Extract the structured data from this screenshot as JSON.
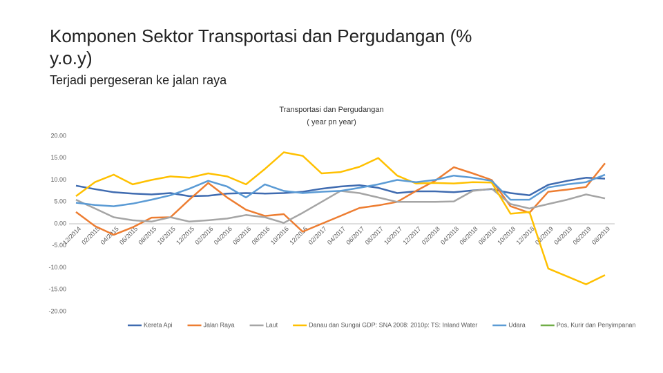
{
  "slide": {
    "title": "Komponen Sektor Transportasi dan Pergudangan (% y.o.y)",
    "subtitle": "Terjadi pergeseran ke jalan raya"
  },
  "chart_data": {
    "type": "line",
    "title": "Transportasi dan Pergudangan",
    "subtitle": "( year pn year)",
    "categories": [
      "12/2014",
      "02/2015",
      "04/2015",
      "06/2015",
      "08/2015",
      "10/2015",
      "12/2015",
      "02/2016",
      "04/2016",
      "06/2016",
      "08/2016",
      "10/2016",
      "12/2016",
      "02/2017",
      "04/2017",
      "06/2017",
      "08/2017",
      "10/2017",
      "12/2017",
      "02/2018",
      "04/2018",
      "06/2018",
      "08/2018",
      "10/2018",
      "12/2018",
      "02/2019",
      "04/2019",
      "06/2019",
      "08/2019"
    ],
    "series": [
      {
        "name": "Kereta Api",
        "color": "#3f6bb0",
        "values": [
          8.7,
          7.9,
          7.2,
          6.9,
          6.7,
          7.0,
          6.3,
          6.4,
          6.9,
          7.0,
          6.9,
          7.0,
          7.3,
          8.0,
          8.5,
          8.8,
          8.2,
          7.0,
          7.4,
          7.4,
          7.2,
          7.6,
          7.9,
          7.0,
          6.5,
          8.9,
          9.8,
          10.5,
          10.3
        ]
      },
      {
        "name": "Jalan Raya",
        "color": "#ed7d31",
        "values": [
          2.7,
          -0.5,
          -2.5,
          -0.8,
          1.4,
          1.5,
          5.5,
          9.3,
          6.0,
          3.2,
          1.8,
          2.2,
          -1.8,
          0.0,
          1.8,
          3.6,
          4.2,
          5.0,
          7.5,
          9.8,
          12.9,
          11.5,
          10.0,
          4.0,
          2.5,
          7.3,
          7.8,
          8.4,
          13.8
        ]
      },
      {
        "name": "Laut",
        "color": "#a5a5a5",
        "values": [
          5.5,
          3.5,
          1.5,
          0.8,
          0.5,
          1.5,
          0.5,
          0.8,
          1.2,
          2.0,
          1.5,
          0.2,
          2.5,
          5.0,
          7.5,
          7.0,
          6.0,
          5.0,
          5.0,
          5.0,
          5.1,
          7.5,
          8.0,
          4.5,
          3.5,
          4.5,
          5.5,
          6.7,
          5.8
        ]
      },
      {
        "name": "Danau dan Sungai GDP: SNA 2008: 2010p: TS: Inland Water",
        "color": "#ffc000",
        "values": [
          6.3,
          9.5,
          11.2,
          9.0,
          10.0,
          10.8,
          10.5,
          11.5,
          10.8,
          9.0,
          12.5,
          16.3,
          15.5,
          11.5,
          11.8,
          13.0,
          15.0,
          11.0,
          9.2,
          9.3,
          9.2,
          9.5,
          9.4,
          2.3,
          2.7,
          -10.2,
          -12.0,
          -13.8,
          -11.7
        ]
      },
      {
        "name": "Udara",
        "color": "#5b9bd5",
        "values": [
          4.8,
          4.3,
          4.0,
          4.6,
          5.5,
          6.5,
          8.0,
          9.8,
          8.5,
          6.0,
          9.0,
          7.5,
          7.0,
          7.3,
          7.5,
          8.2,
          9.0,
          10.0,
          9.5,
          10.0,
          11.0,
          10.5,
          9.8,
          5.5,
          5.5,
          8.3,
          9.0,
          9.5,
          11.2
        ]
      },
      {
        "name": "Pos, Kurir dan Penyimpanan",
        "color": "#70ad47",
        "values": [
          null,
          null,
          null,
          null,
          null,
          null,
          null,
          null,
          null,
          null,
          null,
          null,
          null,
          null,
          null,
          null,
          null,
          null,
          null,
          null,
          null,
          null,
          null,
          null,
          null,
          null,
          null,
          null,
          null
        ]
      }
    ],
    "ylim": [
      -20,
      20
    ],
    "yticks": [
      {
        "value": 20,
        "label": "20.00"
      },
      {
        "value": 15,
        "label": "15.00"
      },
      {
        "value": 10,
        "label": "10.00"
      },
      {
        "value": 5,
        "label": "5.00"
      },
      {
        "value": 0,
        "label": "0.00"
      },
      {
        "value": -5,
        "label": "-5.00"
      },
      {
        "value": -10,
        "label": "-10.00"
      },
      {
        "value": -15,
        "label": "-15.00"
      },
      {
        "value": -20,
        "label": "-20.00"
      }
    ],
    "grid": false,
    "legend": "bottom"
  }
}
